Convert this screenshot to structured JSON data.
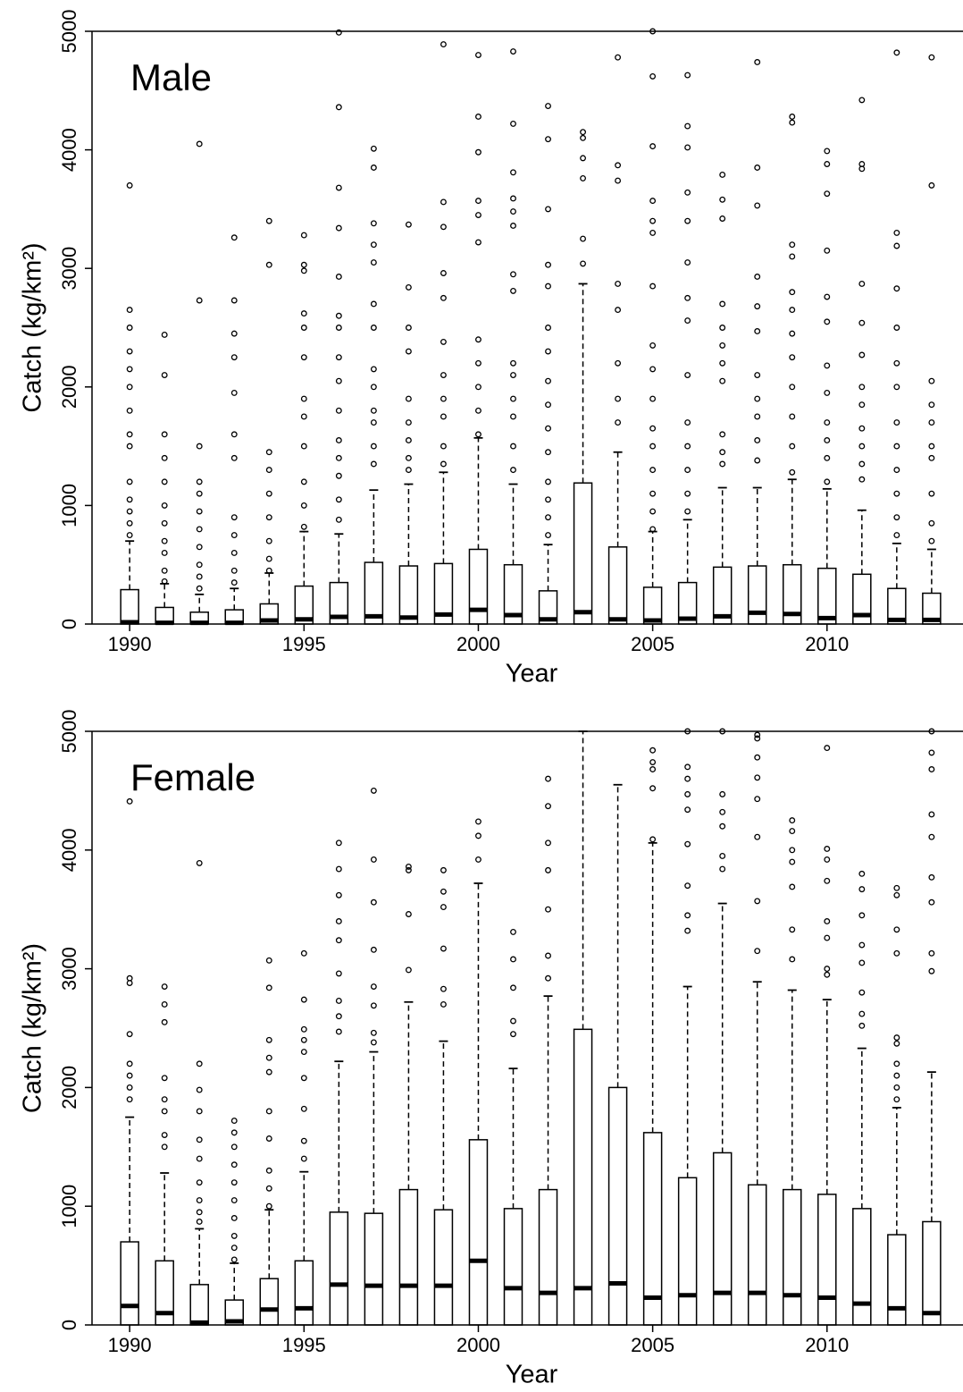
{
  "chart_data": [
    {
      "type": "box",
      "label": "Male",
      "xlabel": "Year",
      "ylabel": "Catch (kg/km²)",
      "x": [
        1990,
        1991,
        1992,
        1993,
        1994,
        1995,
        1996,
        1997,
        1998,
        1999,
        2000,
        2001,
        2002,
        2003,
        2004,
        2005,
        2006,
        2007,
        2008,
        2009,
        2010,
        2011,
        2012,
        2013
      ],
      "xlim": [
        1988.92,
        2013.9
      ],
      "xticks": [
        1990,
        1995,
        2000,
        2005,
        2010
      ],
      "ylim": [
        0,
        5000
      ],
      "yticks": [
        0,
        1000,
        2000,
        3000,
        4000,
        5000
      ],
      "color": "#000000",
      "q1": [
        0,
        0,
        0,
        0,
        0,
        0,
        0,
        0,
        0,
        0,
        0,
        0,
        0,
        0,
        0,
        0,
        0,
        0,
        0,
        0,
        0,
        0,
        0,
        0
      ],
      "median": [
        15,
        10,
        10,
        10,
        30,
        40,
        60,
        65,
        55,
        80,
        120,
        75,
        40,
        100,
        40,
        30,
        45,
        65,
        95,
        85,
        50,
        75,
        35,
        35
      ],
      "q3": [
        290,
        140,
        100,
        120,
        170,
        320,
        350,
        520,
        490,
        510,
        630,
        500,
        280,
        1190,
        650,
        310,
        350,
        480,
        490,
        500,
        470,
        420,
        300,
        260
      ],
      "whisker_high": [
        700,
        340,
        250,
        300,
        430,
        780,
        760,
        1130,
        1180,
        1280,
        1570,
        1180,
        670,
        2870,
        1450,
        780,
        880,
        1150,
        1150,
        1220,
        1140,
        960,
        680,
        630
      ],
      "outliers": [
        [
          750,
          850,
          950,
          1050,
          1200,
          1500,
          1600,
          1800,
          2000,
          2150,
          2300,
          2500,
          2650,
          3700
        ],
        [
          360,
          450,
          600,
          700,
          850,
          1000,
          1200,
          1400,
          1600,
          2100,
          2440
        ],
        [
          300,
          400,
          500,
          650,
          800,
          950,
          1100,
          1200,
          1500,
          2730,
          4050
        ],
        [
          350,
          450,
          600,
          750,
          900,
          1400,
          1600,
          1950,
          2250,
          2450,
          2730,
          3260
        ],
        [
          450,
          550,
          700,
          900,
          1100,
          1300,
          1450,
          3030,
          3400
        ],
        [
          820,
          1000,
          1200,
          1500,
          1750,
          1900,
          2250,
          2500,
          2620,
          2980,
          3030,
          3280
        ],
        [
          880,
          1050,
          1250,
          1400,
          1550,
          1800,
          2050,
          2250,
          2500,
          2600,
          2930,
          3340,
          3680,
          4360,
          4990
        ],
        [
          1350,
          1500,
          1700,
          1800,
          2000,
          2150,
          2500,
          2700,
          3050,
          3200,
          3380,
          3850,
          4010
        ],
        [
          1300,
          1400,
          1550,
          1700,
          1900,
          2300,
          2500,
          2840,
          3370
        ],
        [
          1350,
          1500,
          1750,
          1900,
          2100,
          2380,
          2750,
          2960,
          3350,
          3560,
          4890
        ],
        [
          1600,
          1800,
          2000,
          2200,
          2400,
          3220,
          3450,
          3570,
          3980,
          4280,
          4800
        ],
        [
          1300,
          1500,
          1750,
          1900,
          2100,
          2200,
          2810,
          2950,
          3360,
          3480,
          3590,
          3810,
          4220,
          4830
        ],
        [
          750,
          900,
          1050,
          1200,
          1450,
          1650,
          1850,
          2050,
          2300,
          2500,
          2850,
          3030,
          3500,
          4090,
          4370
        ],
        [
          3040,
          3250,
          3760,
          3930,
          4100,
          4150
        ],
        [
          1700,
          1900,
          2200,
          2650,
          2870,
          3740,
          3870,
          4780
        ],
        [
          800,
          950,
          1100,
          1300,
          1500,
          1650,
          1900,
          2150,
          2350,
          2850,
          3300,
          3400,
          3570,
          4030,
          4620,
          5000
        ],
        [
          950,
          1100,
          1300,
          1500,
          1700,
          2100,
          2560,
          2750,
          3050,
          3400,
          3640,
          4020,
          4200,
          4630
        ],
        [
          1350,
          1450,
          1600,
          2050,
          2200,
          2350,
          2500,
          2700,
          3420,
          3580,
          3790
        ],
        [
          1380,
          1550,
          1750,
          1900,
          2100,
          2470,
          2680,
          2930,
          3530,
          3850,
          4740
        ],
        [
          1280,
          1500,
          1750,
          2000,
          2250,
          2450,
          2650,
          2800,
          3100,
          3200,
          4230,
          4280
        ],
        [
          1200,
          1400,
          1550,
          1700,
          1950,
          2180,
          2550,
          2760,
          3150,
          3630,
          3880,
          3990
        ],
        [
          1220,
          1350,
          1500,
          1650,
          1850,
          2000,
          2270,
          2540,
          2870,
          3840,
          3880,
          4420
        ],
        [
          750,
          900,
          1100,
          1300,
          1500,
          1700,
          2000,
          2200,
          2500,
          2830,
          3190,
          3300,
          4820
        ],
        [
          700,
          850,
          1100,
          1400,
          1500,
          1700,
          1850,
          2050,
          3700,
          4780
        ]
      ]
    },
    {
      "type": "box",
      "label": "Female",
      "xlabel": "Year",
      "ylabel": "Catch (kg/km²)",
      "x": [
        1990,
        1991,
        1992,
        1993,
        1994,
        1995,
        1996,
        1997,
        1998,
        1999,
        2000,
        2001,
        2002,
        2003,
        2004,
        2005,
        2006,
        2007,
        2008,
        2009,
        2010,
        2011,
        2012,
        2013
      ],
      "xlim": [
        1988.92,
        2013.9
      ],
      "xticks": [
        1990,
        1995,
        2000,
        2005,
        2010
      ],
      "ylim": [
        0,
        5000
      ],
      "yticks": [
        0,
        1000,
        2000,
        3000,
        4000,
        5000
      ],
      "color": "#000000",
      "q1": [
        0,
        0,
        0,
        0,
        0,
        0,
        0,
        0,
        0,
        0,
        0,
        0,
        0,
        0,
        0,
        0,
        0,
        0,
        0,
        0,
        0,
        0,
        0,
        0
      ],
      "median": [
        160,
        100,
        20,
        30,
        130,
        140,
        340,
        330,
        330,
        330,
        540,
        310,
        270,
        310,
        350,
        230,
        250,
        270,
        270,
        250,
        230,
        180,
        140,
        100
      ],
      "q3": [
        700,
        540,
        340,
        210,
        390,
        540,
        950,
        940,
        1140,
        970,
        1560,
        980,
        1140,
        2490,
        2000,
        1620,
        1240,
        1450,
        1180,
        1140,
        1100,
        980,
        760,
        870
      ],
      "whisker_high": [
        1750,
        1280,
        810,
        520,
        970,
        1290,
        2220,
        2300,
        2720,
        2390,
        3720,
        2160,
        2770,
        5000,
        4550,
        4060,
        2850,
        3550,
        2890,
        2820,
        2740,
        2330,
        1830,
        2130
      ],
      "outliers": [
        [
          1900,
          2000,
          2100,
          2200,
          2450,
          2880,
          2920,
          4410
        ],
        [
          1500,
          1600,
          1800,
          1900,
          2080,
          2550,
          2700,
          2850
        ],
        [
          870,
          950,
          1050,
          1200,
          1400,
          1560,
          1800,
          1980,
          2200,
          3890
        ],
        [
          550,
          650,
          750,
          900,
          1050,
          1200,
          1350,
          1500,
          1620,
          1720
        ],
        [
          1000,
          1150,
          1300,
          1570,
          1800,
          2130,
          2250,
          2400,
          2840,
          3070
        ],
        [
          1400,
          1550,
          1820,
          2080,
          2300,
          2400,
          2490,
          2740,
          3130
        ],
        [
          2470,
          2600,
          2730,
          2960,
          3240,
          3400,
          3620,
          3840,
          4060
        ],
        [
          2380,
          2460,
          2690,
          2850,
          3160,
          3560,
          3920,
          4500
        ],
        [
          2990,
          3460,
          3830,
          3860
        ],
        [
          2700,
          2830,
          3170,
          3520,
          3650,
          3830
        ],
        [
          3920,
          4120,
          4240
        ],
        [
          2450,
          2560,
          2840,
          3080,
          3310
        ],
        [
          2920,
          3110,
          3500,
          3830,
          4060,
          4370,
          4600
        ],
        [],
        [],
        [
          4090,
          4520,
          4680,
          4740,
          4840
        ],
        [
          3320,
          3450,
          3700,
          4050,
          4340,
          4470,
          4600,
          4700,
          5000
        ],
        [
          3840,
          3950,
          4200,
          4320,
          4470,
          5000
        ],
        [
          3150,
          3570,
          4110,
          4430,
          4610,
          4780,
          4940,
          4970
        ],
        [
          3080,
          3330,
          3690,
          3900,
          4000,
          4160,
          4250
        ],
        [
          2950,
          3000,
          3260,
          3400,
          3740,
          3920,
          4010,
          4860
        ],
        [
          2520,
          2620,
          2800,
          3050,
          3200,
          3450,
          3670,
          3800
        ],
        [
          1900,
          2000,
          2100,
          2200,
          2370,
          2420,
          3130,
          3330,
          3620,
          3680
        ],
        [
          2980,
          3130,
          3560,
          3770,
          4110,
          4300,
          4680,
          4820,
          5000
        ]
      ]
    }
  ]
}
